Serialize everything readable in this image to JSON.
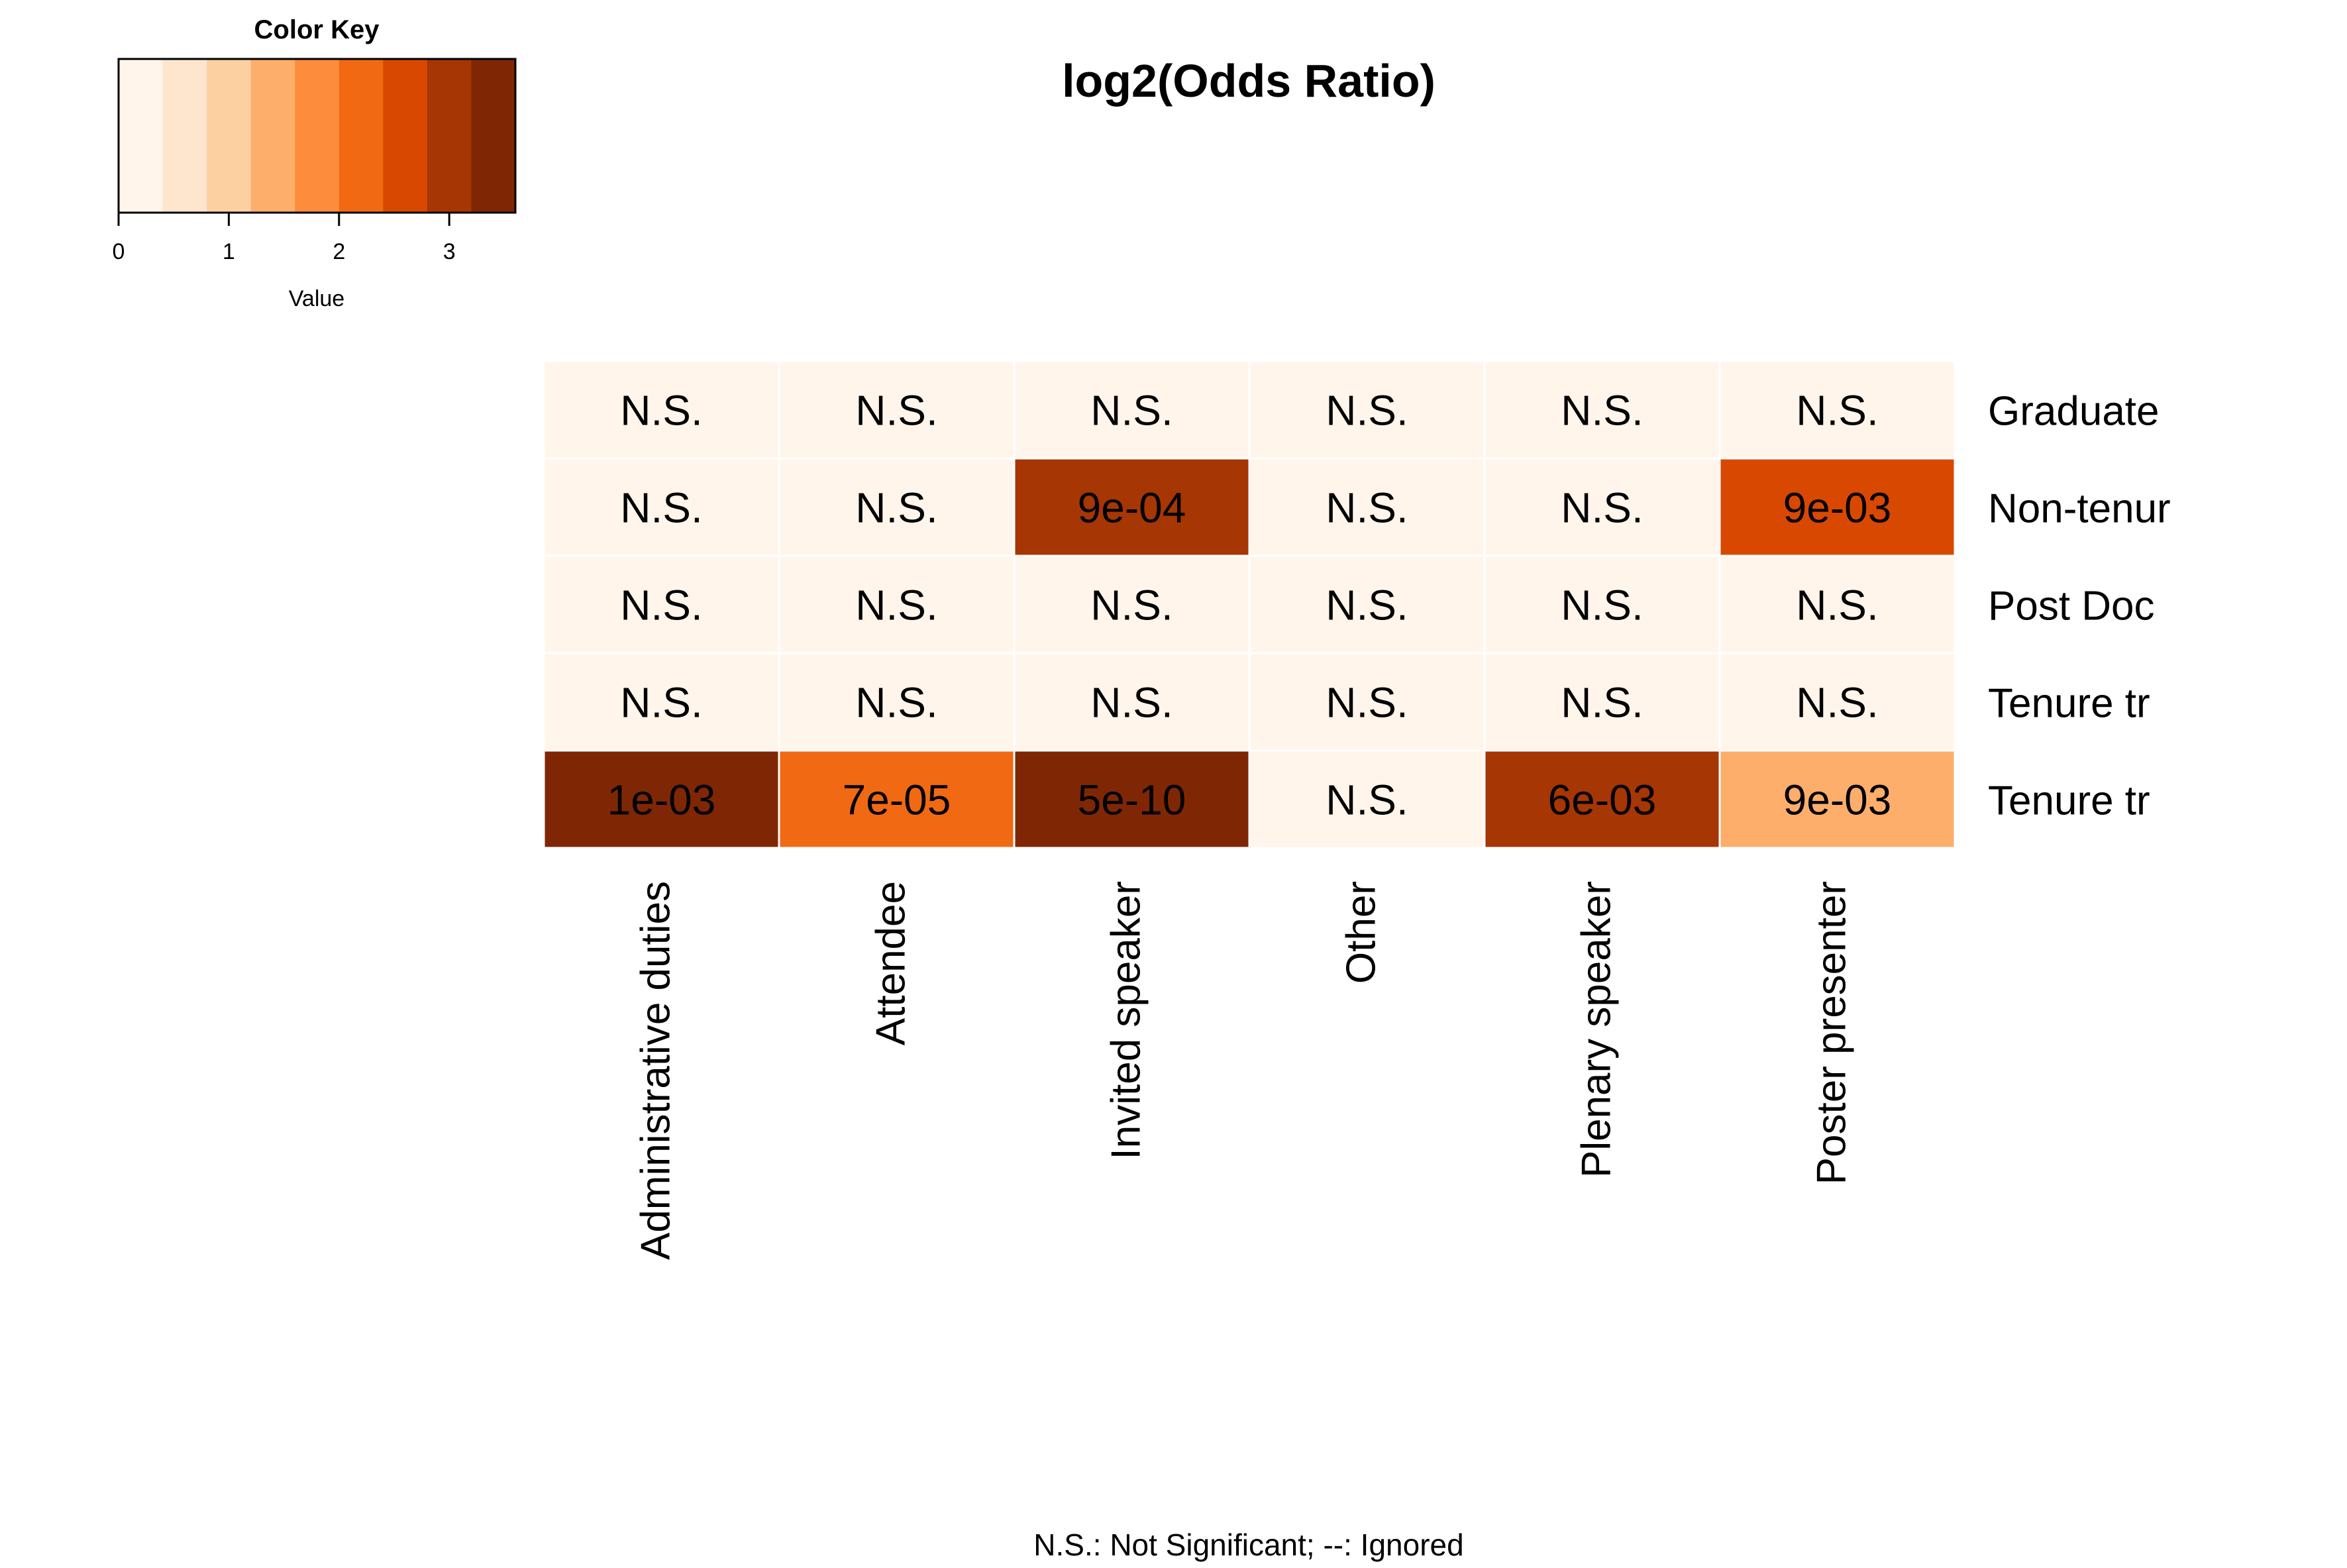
{
  "chart_data": {
    "type": "heatmap",
    "title": "log2(Odds Ratio)",
    "columns": [
      "Administrative duties",
      "Attendee",
      "Invited speaker",
      "Other",
      "Plenary speaker",
      "Poster presenter"
    ],
    "rows": [
      "Graduate",
      "Non-tenur",
      "Post Doc",
      "Tenure tr",
      "Tenure tr"
    ],
    "values": [
      [
        0,
        0,
        0,
        0,
        0,
        0
      ],
      [
        0,
        0,
        3.0,
        0,
        0,
        2.6
      ],
      [
        0,
        0,
        0,
        0,
        0,
        0
      ],
      [
        0,
        0,
        0,
        0,
        0,
        0
      ],
      [
        3.5,
        2.2,
        3.5,
        0,
        3.0,
        1.4
      ]
    ],
    "cell_labels": [
      [
        "N.S.",
        "N.S.",
        "N.S.",
        "N.S.",
        "N.S.",
        "N.S."
      ],
      [
        "N.S.",
        "N.S.",
        "9e-04",
        "N.S.",
        "N.S.",
        "9e-03"
      ],
      [
        "N.S.",
        "N.S.",
        "N.S.",
        "N.S.",
        "N.S.",
        "N.S."
      ],
      [
        "N.S.",
        "N.S.",
        "N.S.",
        "N.S.",
        "N.S.",
        "N.S."
      ],
      [
        "1e-03",
        "7e-05",
        "5e-10",
        "N.S.",
        "6e-03",
        "9e-03"
      ]
    ],
    "color_key": {
      "title": "Color Key",
      "xlabel": "Value",
      "range": [
        0,
        3.6
      ],
      "ticks": [
        "0",
        "1",
        "2",
        "3"
      ],
      "tick_values": [
        0,
        1,
        2,
        3
      ],
      "colors": [
        "#FFF5EB",
        "#FEE6CE",
        "#FDD0A2",
        "#FDAE6B",
        "#FD8D3C",
        "#F16913",
        "#D94801",
        "#A63603",
        "#7F2704"
      ]
    },
    "footnote": "N.S.: Not Significant; --: Ignored"
  }
}
